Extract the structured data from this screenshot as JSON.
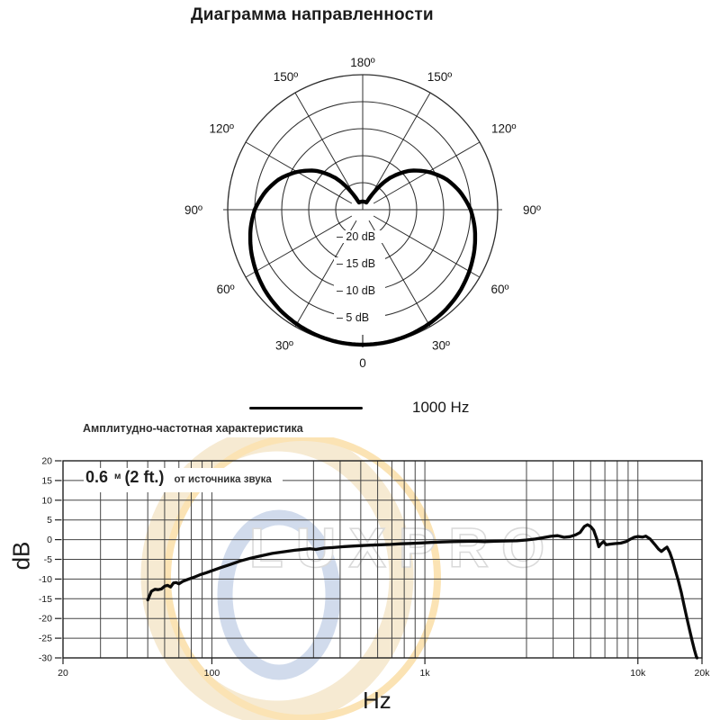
{
  "polar": {
    "title": "Диаграмма направленности",
    "legend_label": "1000 Hz",
    "chart_data": {
      "type": "polar-pattern",
      "pattern": "cardioid",
      "series_name": "1000 Hz",
      "zero_angle_position": "bottom",
      "angle_step_deg": 30,
      "rings_db": [
        -20,
        -15,
        -10,
        -5,
        0
      ],
      "ring_labels": [
        "– 20 dB",
        "– 15 dB",
        "– 10 dB",
        "– 5 dB"
      ],
      "angle_labels": [
        {
          "deg": 180,
          "label": "180º"
        },
        {
          "deg": 150,
          "label": "150º"
        },
        {
          "deg": 120,
          "label": "120º"
        },
        {
          "deg": 90,
          "label": "90º"
        },
        {
          "deg": 60,
          "label": "60º"
        },
        {
          "deg": 30,
          "label": "30º"
        },
        {
          "deg": 0,
          "label": "0"
        }
      ],
      "points_deg_db": [
        [
          0,
          0
        ],
        [
          10,
          -0.05
        ],
        [
          20,
          -0.25
        ],
        [
          30,
          -0.55
        ],
        [
          40,
          -0.95
        ],
        [
          50,
          -1.5
        ],
        [
          60,
          -2.2
        ],
        [
          70,
          -3.0
        ],
        [
          80,
          -3.9
        ],
        [
          90,
          -5.0
        ],
        [
          100,
          -6.6
        ],
        [
          110,
          -8.5
        ],
        [
          120,
          -11.0
        ],
        [
          130,
          -13.8
        ],
        [
          140,
          -17.5
        ],
        [
          150,
          -22.5
        ],
        [
          158,
          -26
        ],
        [
          166,
          -28
        ],
        [
          180,
          -30
        ]
      ]
    }
  },
  "freq": {
    "title": "Амплитудно-частотная характеристика",
    "annotation": {
      "value": "0.6",
      "unit": "м",
      "imperial": "(2 ft.)",
      "note": "от источника звука"
    },
    "xlabel": "Hz",
    "ylabel": "dB",
    "chart_data": {
      "type": "line",
      "x_scale": "log",
      "xlim": [
        20,
        20000
      ],
      "ylim": [
        -30,
        20
      ],
      "grid": true,
      "x_ticks": [
        {
          "value": 20,
          "label": "20"
        },
        {
          "value": 100,
          "label": "100"
        },
        {
          "value": 1000,
          "label": "1k"
        },
        {
          "value": 10000,
          "label": "10k"
        },
        {
          "value": 20000,
          "label": "20k"
        }
      ],
      "y_ticks": [
        {
          "value": 20,
          "label": "20"
        },
        {
          "value": 15,
          "label": "15"
        },
        {
          "value": 10,
          "label": "10"
        },
        {
          "value": 5,
          "label": "5"
        },
        {
          "value": 0,
          "label": "0"
        },
        {
          "value": -5,
          "label": "-5"
        },
        {
          "value": -10,
          "label": "-10"
        },
        {
          "value": -15,
          "label": "-15"
        },
        {
          "value": -20,
          "label": "-20"
        },
        {
          "value": -25,
          "label": "-25"
        },
        {
          "value": -30,
          "label": "-30"
        }
      ],
      "series": [
        {
          "name": "frequency response 0.6 m",
          "points_hz_db": [
            [
              50,
              -15.3
            ],
            [
              51,
              -14.2
            ],
            [
              52,
              -13.1
            ],
            [
              54,
              -12.6
            ],
            [
              56,
              -12.7
            ],
            [
              58,
              -12.5
            ],
            [
              60,
              -11.8
            ],
            [
              62,
              -11.6
            ],
            [
              64,
              -12.0
            ],
            [
              66,
              -11.0
            ],
            [
              68,
              -10.9
            ],
            [
              70,
              -11.2
            ],
            [
              73,
              -10.6
            ],
            [
              77,
              -10.1
            ],
            [
              82,
              -9.6
            ],
            [
              88,
              -8.9
            ],
            [
              94,
              -8.4
            ],
            [
              100,
              -7.9
            ],
            [
              110,
              -7.1
            ],
            [
              122,
              -6.3
            ],
            [
              136,
              -5.4
            ],
            [
              152,
              -4.7
            ],
            [
              170,
              -4.1
            ],
            [
              192,
              -3.5
            ],
            [
              215,
              -3.1
            ],
            [
              245,
              -2.7
            ],
            [
              272,
              -2.45
            ],
            [
              290,
              -2.3
            ],
            [
              308,
              -2.5
            ],
            [
              335,
              -2.15
            ],
            [
              370,
              -2.0
            ],
            [
              410,
              -1.8
            ],
            [
              455,
              -1.65
            ],
            [
              505,
              -1.5
            ],
            [
              560,
              -1.4
            ],
            [
              620,
              -1.3
            ],
            [
              690,
              -1.2
            ],
            [
              770,
              -1.05
            ],
            [
              860,
              -0.95
            ],
            [
              960,
              -0.85
            ],
            [
              1070,
              -0.7
            ],
            [
              1200,
              -0.6
            ],
            [
              1340,
              -0.5
            ],
            [
              1500,
              -0.45
            ],
            [
              1700,
              -0.4
            ],
            [
              1900,
              -0.5
            ],
            [
              2150,
              -0.4
            ],
            [
              2400,
              -0.35
            ],
            [
              2700,
              -0.3
            ],
            [
              3000,
              -0.1
            ],
            [
              3300,
              0.15
            ],
            [
              3600,
              0.5
            ],
            [
              3900,
              0.85
            ],
            [
              4200,
              1.0
            ],
            [
              4500,
              0.6
            ],
            [
              4800,
              0.75
            ],
            [
              5100,
              1.2
            ],
            [
              5350,
              1.8
            ],
            [
              5600,
              3.3
            ],
            [
              5800,
              3.8
            ],
            [
              6000,
              3.3
            ],
            [
              6200,
              2.4
            ],
            [
              6400,
              0.3
            ],
            [
              6550,
              -1.8
            ],
            [
              6700,
              -1.1
            ],
            [
              6900,
              -0.5
            ],
            [
              7100,
              -1.3
            ],
            [
              7400,
              -1.15
            ],
            [
              7800,
              -1.0
            ],
            [
              8300,
              -0.9
            ],
            [
              8800,
              -0.5
            ],
            [
              9200,
              0.1
            ],
            [
              9600,
              0.6
            ],
            [
              10000,
              0.8
            ],
            [
              10500,
              0.65
            ],
            [
              10900,
              0.9
            ],
            [
              11400,
              0.2
            ],
            [
              12000,
              -1.2
            ],
            [
              12500,
              -2.4
            ],
            [
              12900,
              -3.0
            ],
            [
              13300,
              -2.4
            ],
            [
              13700,
              -1.9
            ],
            [
              14100,
              -3.2
            ],
            [
              14500,
              -5.0
            ],
            [
              15000,
              -7.8
            ],
            [
              15500,
              -10.5
            ],
            [
              16000,
              -13.5
            ],
            [
              16500,
              -16.8
            ],
            [
              17000,
              -20.0
            ],
            [
              17500,
              -23.0
            ],
            [
              18000,
              -25.8
            ],
            [
              18400,
              -27.8
            ],
            [
              18800,
              -29.6
            ],
            [
              18950,
              -30
            ]
          ]
        }
      ]
    }
  },
  "watermark": {
    "text": "LUXPRO",
    "ring_color_outer": "#f6e9d0",
    "ring_color_yellow": "#fbe2b0",
    "ring_color_blue": "#cfdaec",
    "text_fill": "#ffffff",
    "text_outline": "#d9d9d9"
  }
}
